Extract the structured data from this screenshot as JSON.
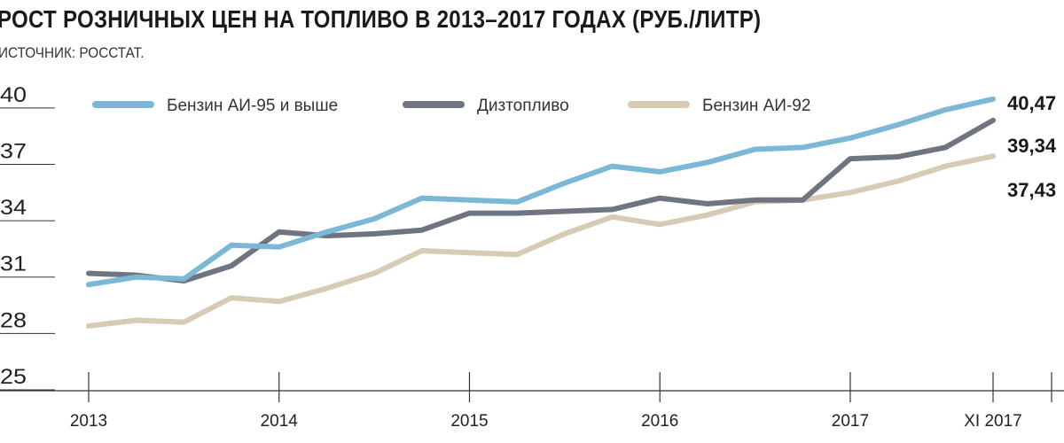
{
  "title": "РОСТ РОЗНИЧНЫХ ЦЕН НА ТОПЛИВО В 2013–2017 ГОДАХ (РУБ./ЛИТР)",
  "subtitle": "ИСТОЧНИК: РОССТАТ.",
  "chart_data": {
    "type": "line",
    "title": "РОСТ РОЗНИЧНЫХ ЦЕН НА ТОПЛИВО В 2013–2017 ГОДАХ (РУБ./ЛИТР)",
    "source": "ИСТОЧНИК: РОССТАТ.",
    "ylim": [
      25,
      41.5
    ],
    "yticks": [
      "25",
      "28",
      "31",
      "34",
      "37",
      "40"
    ],
    "xlim": [
      0,
      57
    ],
    "xticks": [
      {
        "x": 0,
        "label": "2013"
      },
      {
        "x": 12,
        "label": "2014"
      },
      {
        "x": 24,
        "label": "2015"
      },
      {
        "x": 36,
        "label": "2016"
      },
      {
        "x": 48,
        "label": "2017"
      },
      {
        "x": 57,
        "label": "XI 2017"
      }
    ],
    "grid": "y-ticks only",
    "legend": "top",
    "x": [
      0,
      3,
      6,
      9,
      12,
      15,
      18,
      21,
      24,
      27,
      30,
      33,
      36,
      39,
      42,
      45,
      48,
      51,
      54,
      57
    ],
    "series": [
      {
        "name": "Бензин АИ-95 и выше",
        "color": "#7ab8d6",
        "values": [
          30.6,
          31.0,
          30.9,
          32.7,
          32.6,
          33.4,
          34.1,
          35.2,
          35.1,
          35.0,
          36.0,
          36.9,
          36.6,
          37.1,
          37.8,
          37.9,
          38.4,
          39.1,
          39.9,
          40.47
        ],
        "end_label": "40,47"
      },
      {
        "name": "Дизтопливо",
        "color": "#6e7480",
        "values": [
          31.2,
          31.1,
          30.8,
          31.6,
          33.4,
          33.2,
          33.3,
          33.5,
          34.4,
          34.4,
          34.5,
          34.6,
          35.2,
          34.9,
          35.1,
          35.1,
          37.3,
          37.4,
          37.9,
          39.34
        ],
        "end_label": "39,34"
      },
      {
        "name": "Бензин АИ-92",
        "color": "#d8cbb5",
        "values": [
          28.4,
          28.7,
          28.6,
          29.9,
          29.7,
          30.4,
          31.2,
          32.4,
          32.3,
          32.2,
          33.3,
          34.2,
          33.8,
          34.3,
          35.0,
          35.1,
          35.5,
          36.1,
          36.9,
          37.43
        ],
        "end_label": "37,43"
      }
    ]
  }
}
